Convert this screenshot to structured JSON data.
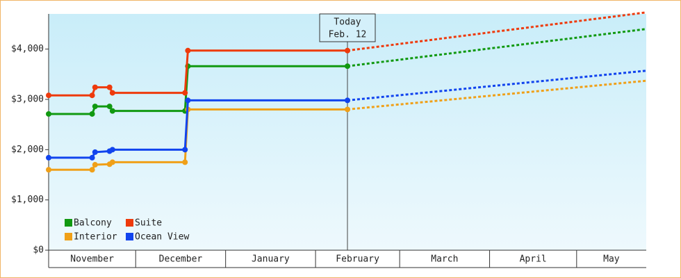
{
  "chart_data": {
    "type": "line",
    "categories": [
      "November",
      "December",
      "January",
      "February",
      "March",
      "April",
      "May"
    ],
    "month_starts": [
      0,
      30,
      61,
      92,
      121,
      152,
      182
    ],
    "xlim": [
      0,
      206
    ],
    "ylim": [
      0,
      4700
    ],
    "yticks": [
      {
        "value": 0,
        "label": "$0"
      },
      {
        "value": 1000,
        "label": "$1,000"
      },
      {
        "value": 2000,
        "label": "$2,000"
      },
      {
        "value": 3000,
        "label": "$3,000"
      },
      {
        "value": 4000,
        "label": "$4,000"
      }
    ],
    "x": [
      0,
      15,
      16,
      21,
      22,
      47,
      48,
      103
    ],
    "series": [
      {
        "name": "Balcony",
        "color": "#119911",
        "values": [
          2710,
          2710,
          2860,
          2860,
          2770,
          2770,
          3660,
          3660
        ],
        "forecast": {
          "x": [
            103,
            206
          ],
          "values": [
            3660,
            4400
          ]
        }
      },
      {
        "name": "Suite",
        "color": "#ee3a0c",
        "values": [
          3080,
          3080,
          3240,
          3240,
          3130,
          3130,
          3970,
          3970
        ],
        "forecast": {
          "x": [
            103,
            206
          ],
          "values": [
            3970,
            4730
          ]
        }
      },
      {
        "name": "Interior",
        "color": "#f0a018",
        "values": [
          1600,
          1600,
          1700,
          1710,
          1750,
          1750,
          2800,
          2800
        ],
        "forecast": {
          "x": [
            103,
            206
          ],
          "values": [
            2800,
            3370
          ]
        }
      },
      {
        "name": "Ocean View",
        "color": "#1144ee",
        "values": [
          1840,
          1840,
          1950,
          1970,
          2000,
          2000,
          2980,
          2980
        ],
        "forecast": {
          "x": [
            103,
            206
          ],
          "values": [
            2980,
            3570
          ]
        }
      }
    ],
    "annotation": {
      "x": 103,
      "lines": [
        "Today",
        "Feb. 12"
      ]
    }
  }
}
